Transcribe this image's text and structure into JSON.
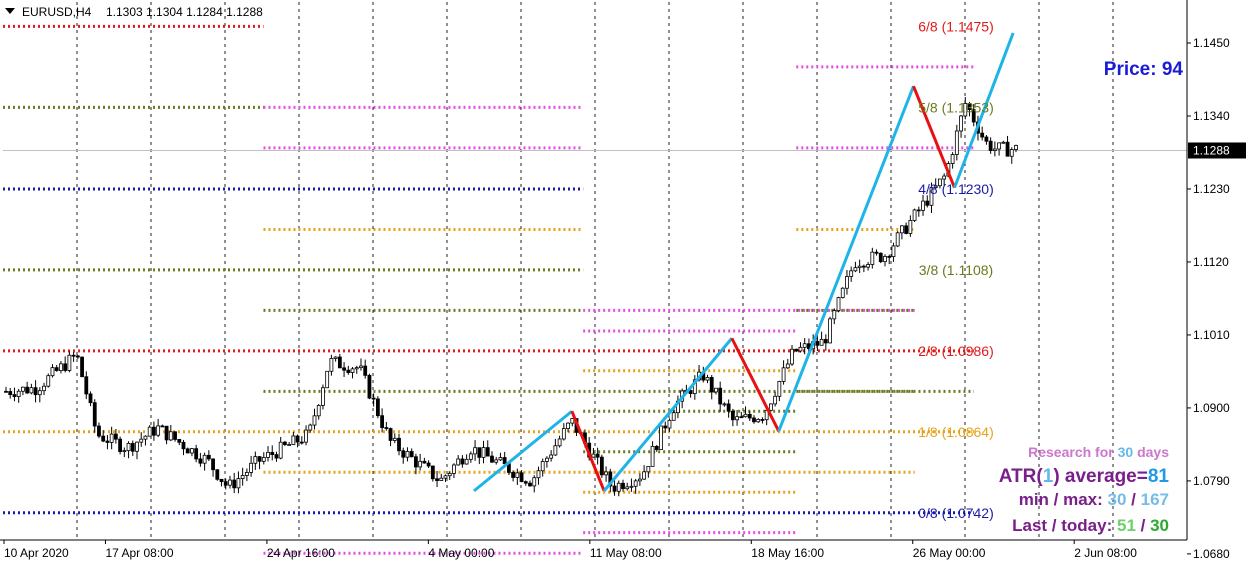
{
  "header": {
    "symbol": "EURUSD,H4",
    "ohlc": "1.1303 1.1304 1.1284 1.1288"
  },
  "price_label": {
    "prefix": "Price: ",
    "value": "94"
  },
  "current_price": "1.1288",
  "info_panel": {
    "research_prefix": "Research for ",
    "research_days": "30",
    "research_suffix": " days",
    "atr_prefix": "ATR(",
    "atr_period": "1",
    "atr_middle": ") average=",
    "atr_value": "81",
    "minmax_prefix": "min / max: ",
    "min_value": "30",
    "minmax_sep": " / ",
    "max_value": "167",
    "last_prefix": "Last / today: ",
    "last_value": "51",
    "last_sep": " / ",
    "today_value": "30"
  },
  "colors": {
    "bull": "#ffffff",
    "bear": "#000000",
    "zigzag_up": "#1eb4e8",
    "zigzag_down": "#e81010",
    "lvl_red": "#e31a1a",
    "lvl_olive": "#6b7a1e",
    "lvl_blue": "#1a1aa8",
    "lvl_orange": "#e6a21a",
    "lvl_magenta": "#e64ce6"
  },
  "chart_data": {
    "type": "candlestick",
    "symbol": "EURUSD",
    "timeframe": "H4",
    "y_ticks": [
      1.145,
      1.134,
      1.123,
      1.112,
      1.101,
      1.09,
      1.079,
      1.068
    ],
    "x_ticks": [
      "10 Apr 2020",
      "17 Apr 08:00",
      "24 Apr 16:00",
      "4 May 00:00",
      "11 May 08:00",
      "18 May 16:00",
      "26 May 00:00",
      "2 Jun 08:00"
    ],
    "murrey_labels": [
      {
        "text": "6/8 (1.1475)",
        "value": 1.1475,
        "color": "red"
      },
      {
        "text": "5/8 (1.1353)",
        "value": 1.1353,
        "color": "olive"
      },
      {
        "text": "4/8 (1.1230)",
        "value": 1.123,
        "color": "blue"
      },
      {
        "text": "3/8 (1.1108)",
        "value": 1.1108,
        "color": "olive"
      },
      {
        "text": "2/8 (1.0986)",
        "value": 1.0986,
        "color": "red"
      },
      {
        "text": "1/8 (1.0864)",
        "value": 1.0864,
        "color": "orange"
      },
      {
        "text": "0/8 (1.0742)",
        "value": 1.0742,
        "color": "blue"
      }
    ],
    "zigzag": [
      {
        "x": 0.0,
        "y": 1.0775
      },
      {
        "x": 0.167,
        "y": 1.0895
      },
      {
        "x": 0.222,
        "y": 1.0775
      },
      {
        "x": 0.44,
        "y": 1.1005
      },
      {
        "x": 0.52,
        "y": 1.0865
      },
      {
        "x": 0.75,
        "y": 1.1385
      },
      {
        "x": 0.82,
        "y": 1.1232
      },
      {
        "x": 0.92,
        "y": 1.1465
      }
    ],
    "level_segments": [
      {
        "v": 1.1475,
        "from": 0.0,
        "to": 0.22,
        "color": "red"
      },
      {
        "v": 1.1353,
        "from": 0.0,
        "to": 0.22,
        "color": "olive"
      },
      {
        "v": 1.123,
        "from": 0.0,
        "to": 0.49,
        "color": "blue"
      },
      {
        "v": 1.1108,
        "from": 0.0,
        "to": 0.49,
        "color": "olive"
      },
      {
        "v": 1.0986,
        "from": 0.0,
        "to": 0.82,
        "color": "red"
      },
      {
        "v": 1.0864,
        "from": 0.0,
        "to": 0.82,
        "color": "orange"
      },
      {
        "v": 1.0742,
        "from": 0.0,
        "to": 0.82,
        "color": "blue"
      },
      {
        "v": 1.1353,
        "from": 0.22,
        "to": 0.49,
        "color": "magenta"
      },
      {
        "v": 1.1292,
        "from": 0.22,
        "to": 0.49,
        "color": "magenta"
      },
      {
        "v": 1.1169,
        "from": 0.22,
        "to": 0.49,
        "color": "orange"
      },
      {
        "v": 1.1047,
        "from": 0.22,
        "to": 0.49,
        "color": "olive"
      },
      {
        "v": 1.0925,
        "from": 0.22,
        "to": 0.82,
        "color": "olive"
      },
      {
        "v": 1.0803,
        "from": 0.22,
        "to": 0.77,
        "color": "orange"
      },
      {
        "v": 1.0681,
        "from": 0.22,
        "to": 0.49,
        "color": "magenta"
      },
      {
        "v": 1.062,
        "from": 0.0,
        "to": 0.82,
        "color": "magenta"
      },
      {
        "v": 1.1047,
        "from": 0.49,
        "to": 0.77,
        "color": "magenta"
      },
      {
        "v": 1.1016,
        "from": 0.49,
        "to": 0.67,
        "color": "magenta"
      },
      {
        "v": 1.0956,
        "from": 0.49,
        "to": 0.67,
        "color": "orange"
      },
      {
        "v": 1.0895,
        "from": 0.49,
        "to": 0.67,
        "color": "olive"
      },
      {
        "v": 1.0834,
        "from": 0.49,
        "to": 0.67,
        "color": "olive"
      },
      {
        "v": 1.0773,
        "from": 0.49,
        "to": 0.67,
        "color": "orange"
      },
      {
        "v": 1.0712,
        "from": 0.49,
        "to": 0.67,
        "color": "magenta"
      },
      {
        "v": 1.1414,
        "from": 0.67,
        "to": 0.82,
        "color": "magenta"
      },
      {
        "v": 1.1292,
        "from": 0.67,
        "to": 0.82,
        "color": "magenta"
      },
      {
        "v": 1.1169,
        "from": 0.67,
        "to": 0.77,
        "color": "orange"
      },
      {
        "v": 1.1047,
        "from": 0.67,
        "to": 0.77,
        "color": "olive"
      },
      {
        "v": 1.0925,
        "from": 0.67,
        "to": 0.77,
        "color": "olive"
      },
      {
        "v": 1.062,
        "from": 0.67,
        "to": 0.82,
        "color": "orange"
      }
    ]
  }
}
